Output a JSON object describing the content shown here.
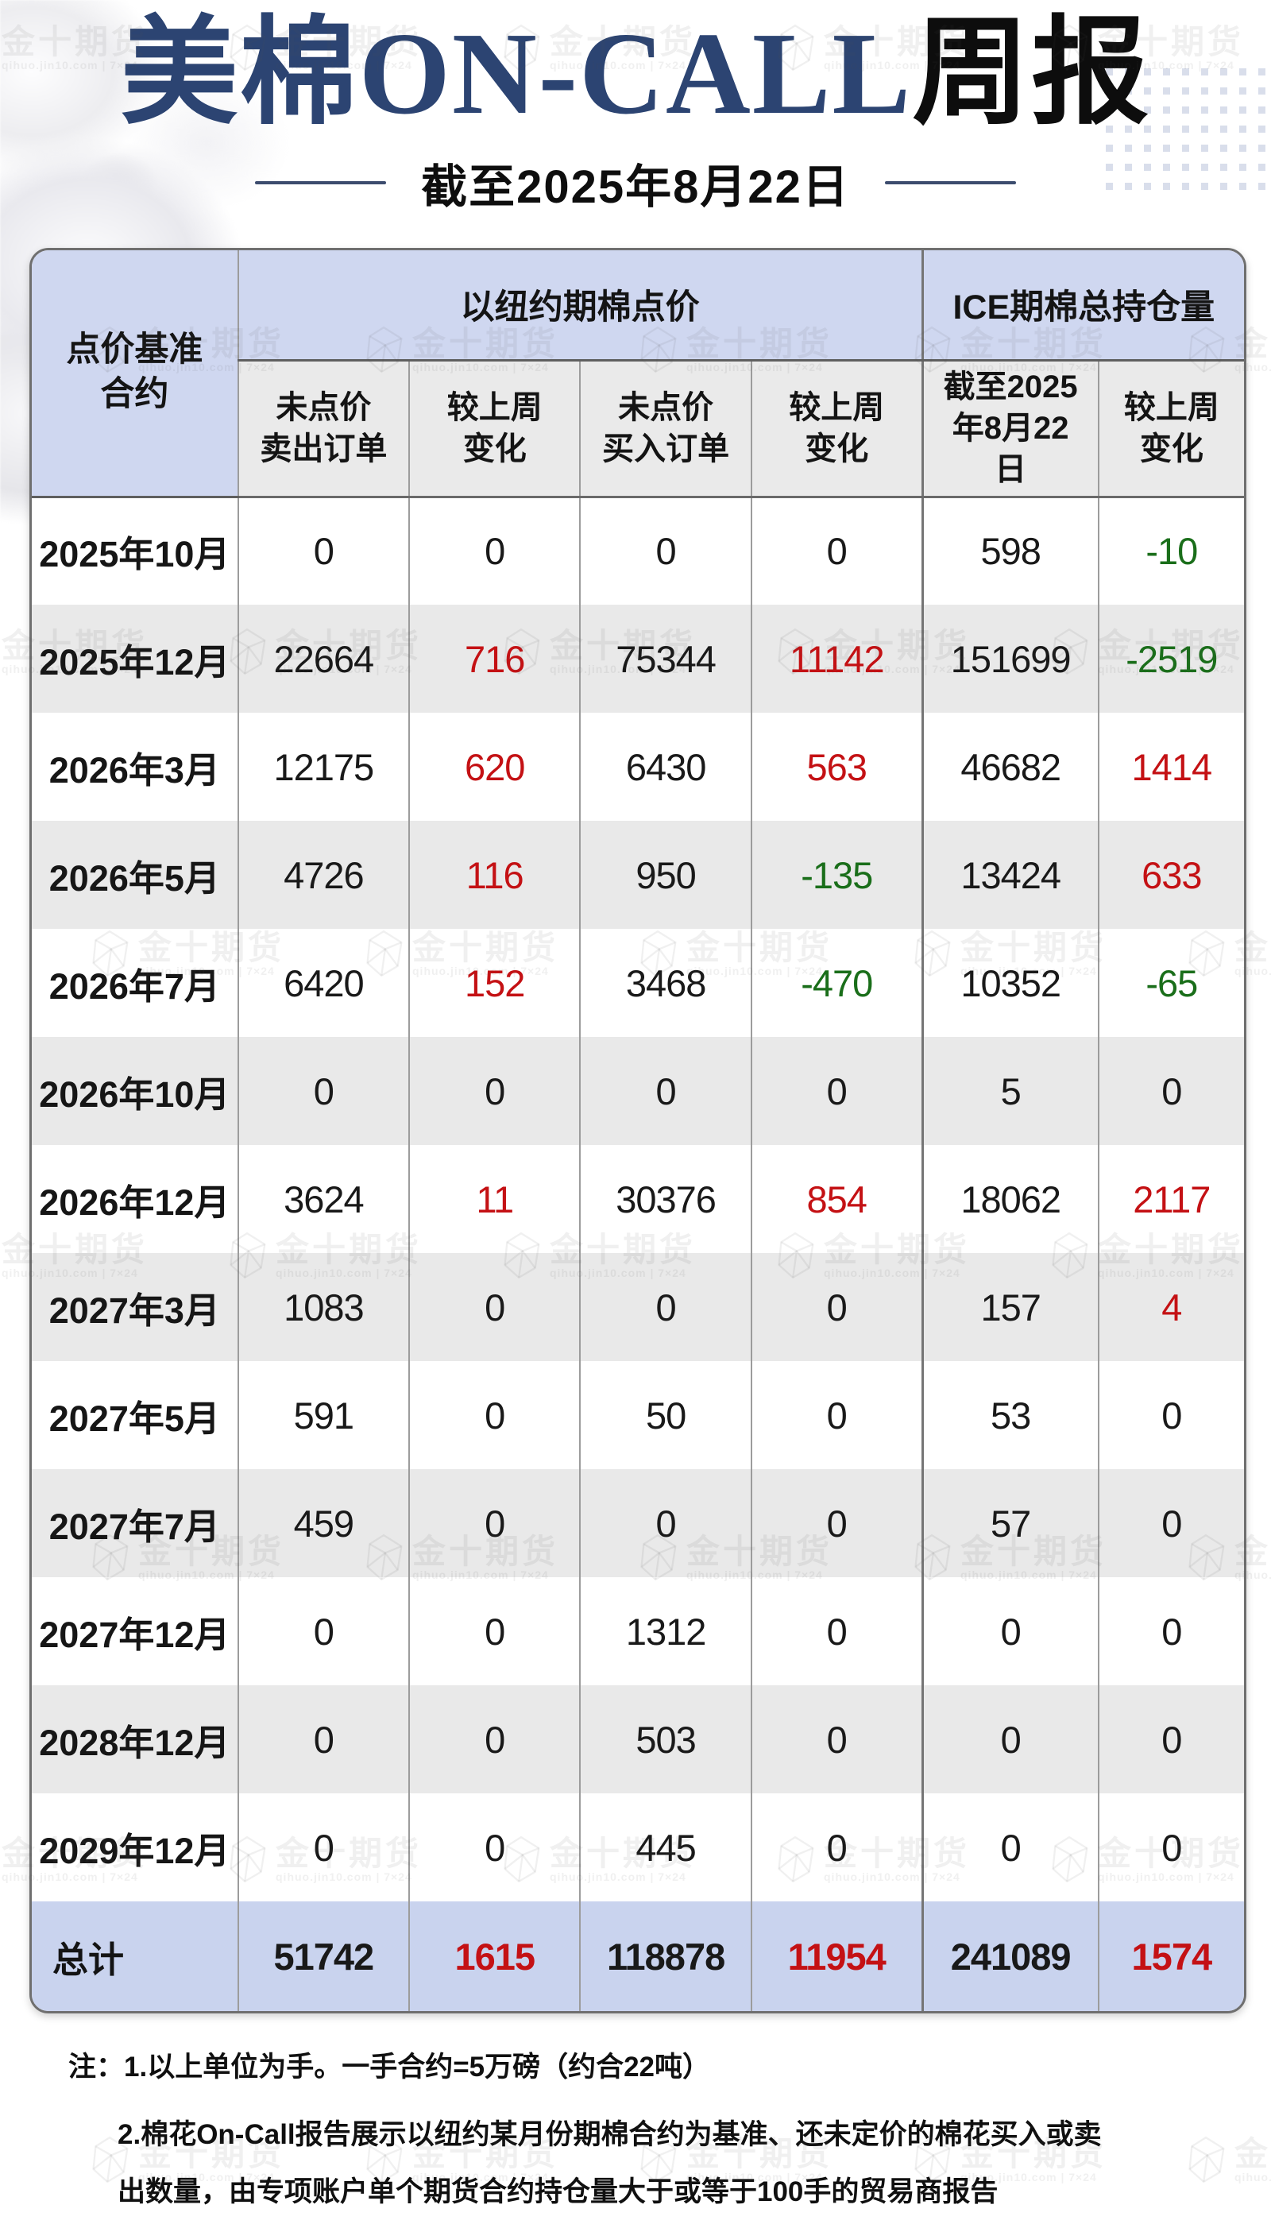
{
  "page": {
    "title_accent": "美棉ON-CALL",
    "title_rest": "周报",
    "subtitle": "截至2025年8月22日"
  },
  "watermark": {
    "brand": "金十期货",
    "tagline": "qihuo.jin10.com | 7×24"
  },
  "colors": {
    "positive_change": "#c41114",
    "negative_change": "#1a6e1a",
    "group_header_fill": "#cfd7f0",
    "subheader_fill": "#eaeaea",
    "row_alt_fill": "#e9e9e9",
    "total_row_fill": "#c9d3ee",
    "title_navy": "#2c4472"
  },
  "table": {
    "corner_header": "点价基准\n合约",
    "groups": [
      {
        "label": "以纽约期棉点价",
        "colspan": 4
      },
      {
        "label": "ICE期棉总持仓量",
        "colspan": 2
      }
    ],
    "subheaders": [
      "未点价\n卖出订单",
      "较上周\n变化",
      "未点价\n买入订单",
      "较上周\n变化",
      "截至2025\n年8月22\n日",
      "较上周\n变化"
    ],
    "change_columns": [
      1,
      3,
      5
    ],
    "rows": [
      {
        "contract": "2025年10月",
        "values": [
          "0",
          "0",
          "0",
          "0",
          "598",
          "-10"
        ]
      },
      {
        "contract": "2025年12月",
        "values": [
          "22664",
          "716",
          "75344",
          "11142",
          "151699",
          "-2519"
        ]
      },
      {
        "contract": "2026年3月",
        "values": [
          "12175",
          "620",
          "6430",
          "563",
          "46682",
          "1414"
        ]
      },
      {
        "contract": "2026年5月",
        "values": [
          "4726",
          "116",
          "950",
          "-135",
          "13424",
          "633"
        ]
      },
      {
        "contract": "2026年7月",
        "values": [
          "6420",
          "152",
          "3468",
          "-470",
          "10352",
          "-65"
        ]
      },
      {
        "contract": "2026年10月",
        "values": [
          "0",
          "0",
          "0",
          "0",
          "5",
          "0"
        ]
      },
      {
        "contract": "2026年12月",
        "values": [
          "3624",
          "11",
          "30376",
          "854",
          "18062",
          "2117"
        ]
      },
      {
        "contract": "2027年3月",
        "values": [
          "1083",
          "0",
          "0",
          "0",
          "157",
          "4"
        ]
      },
      {
        "contract": "2027年5月",
        "values": [
          "591",
          "0",
          "50",
          "0",
          "53",
          "0"
        ]
      },
      {
        "contract": "2027年7月",
        "values": [
          "459",
          "0",
          "0",
          "0",
          "57",
          "0"
        ]
      },
      {
        "contract": "2027年12月",
        "values": [
          "0",
          "0",
          "1312",
          "0",
          "0",
          "0"
        ]
      },
      {
        "contract": "2028年12月",
        "values": [
          "0",
          "0",
          "503",
          "0",
          "0",
          "0"
        ]
      },
      {
        "contract": "2029年12月",
        "values": [
          "0",
          "0",
          "445",
          "0",
          "0",
          "0"
        ]
      }
    ],
    "total": {
      "label": "总计",
      "values": [
        "51742",
        "1615",
        "118878",
        "11954",
        "241089",
        "1574"
      ]
    }
  },
  "notes": [
    "注：1.以上单位为手。一手合约=5万磅（约合22吨）",
    "2.棉花On-Call报告展示以纽约某月份期棉合约为基准、还未定价的棉花买入或卖",
    "出数量，由专项账户单个期货合约持仓量大于或等于100手的贸易商报告"
  ]
}
